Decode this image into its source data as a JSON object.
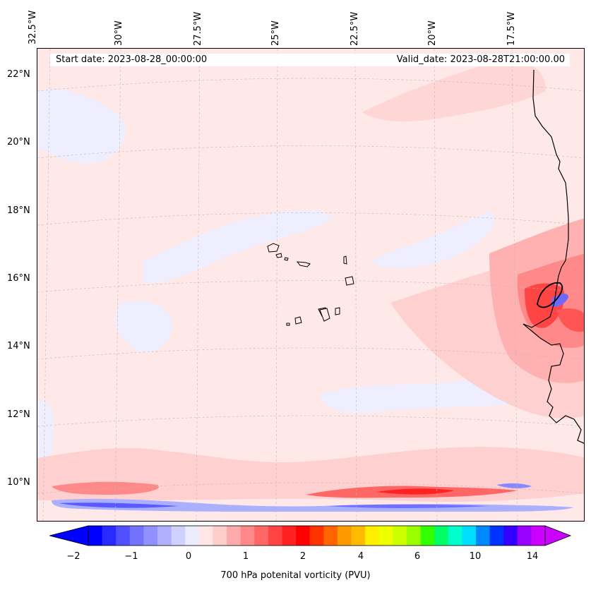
{
  "map": {
    "start_date": "Start date: 2023-08-28_00:00:00",
    "valid_date": "Valid_date: 2023-08-28T21:00:00.00",
    "longitude_labels": [
      "32.5°W",
      "30°W",
      "27.5°W",
      "25°W",
      "22.5°W",
      "20°W",
      "17.5°W"
    ],
    "latitude_labels": [
      "22°N",
      "20°N",
      "18°N",
      "16°N",
      "14°N",
      "12°N",
      "10°N"
    ]
  },
  "colorbar": {
    "title": "700 hPa potenital vorticity (PVU)",
    "tick_labels": [
      "−2",
      "−1",
      "0",
      "1",
      "2",
      "4",
      "6",
      "10",
      "14"
    ],
    "colors": [
      "#0000ff",
      "#2a2aff",
      "#5050ff",
      "#7272ff",
      "#9090ff",
      "#b0b0ff",
      "#d0d0ff",
      "#ececff",
      "#ffe6e6",
      "#ffcccc",
      "#ffaaaa",
      "#ff8888",
      "#ff6666",
      "#ff4444",
      "#ff2222",
      "#ff0000",
      "#ff3300",
      "#ff6600",
      "#ff9900",
      "#ffbb00",
      "#ffee00",
      "#eeff00",
      "#ccff00",
      "#99ff00",
      "#33ff00",
      "#00ff66",
      "#00ffcc",
      "#00ddff",
      "#0088ff",
      "#0033ff",
      "#3300ff",
      "#9900ff",
      "#cc00ff"
    ],
    "under_color": "#0000ff",
    "over_color": "#cc00ff"
  }
}
